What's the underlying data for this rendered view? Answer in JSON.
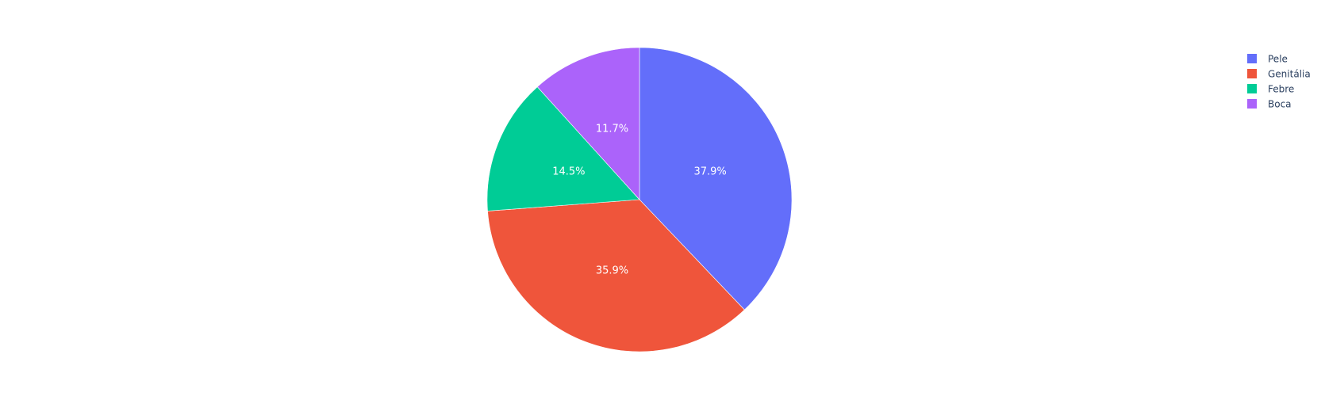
{
  "chart_data": {
    "type": "pie",
    "labels": [
      "Pele",
      "Genitália",
      "Febre",
      "Boca"
    ],
    "values": [
      37.9,
      35.9,
      14.5,
      11.7
    ],
    "percent_labels": [
      "37.9%",
      "35.9%",
      "14.5%",
      "11.7%"
    ],
    "colors": [
      "#636efa",
      "#ef553b",
      "#00cc96",
      "#ab63fa"
    ],
    "direction": "clockwise",
    "start": "top",
    "legend_position": "top-right",
    "title": ""
  }
}
